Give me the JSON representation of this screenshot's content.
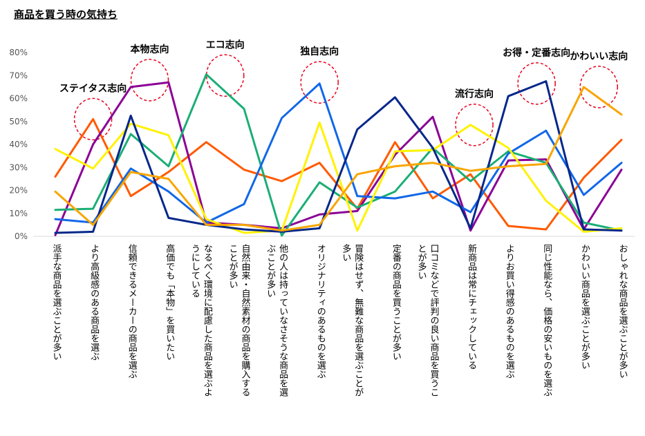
{
  "chart_data": {
    "type": "line",
    "title": "商品を買う時の気持ち",
    "ylim": [
      0,
      80
    ],
    "yticks": [
      "0%",
      "10%",
      "20%",
      "30%",
      "40%",
      "50%",
      "60%",
      "70%",
      "80%"
    ],
    "categories": [
      "派手な商品を選ぶことが多い",
      "より高級感のある商品を選ぶ",
      "信頼できるメーカーの商品を選ぶ",
      "高価でも「本物」を買いたい",
      "なるべく環境に配慮した商品を選ぶようにしている",
      "自然由来・自然素材の商品を購入することが多い",
      "他の人は持っていなさそうな商品を選ぶことが多い",
      "オリジナリティのあるものを選ぶ",
      "冒険はせず、無難な商品を選ぶことが多い",
      "定番の商品を買うことが多い",
      "口コミなどで評判の良い商品を買うことが多い",
      "新商品は常にチェックしている",
      "よりお買い得感のあるものを選ぶ",
      "同じ性能なら、価格の安いものを選ぶ",
      "かわいい商品を選ぶことが多い",
      "おしゃれな商品を選ぶことが多い"
    ],
    "category_lines": [
      [
        "派手な商品を選ぶことが多い"
      ],
      [
        "より高級感のある商品を選ぶ"
      ],
      [
        "信頼できるメーカーの商品を選ぶ"
      ],
      [
        "高価でも「本物」を買いたい"
      ],
      [
        "なるべく環境に配慮した商品を選ぶよ",
        "うにしている"
      ],
      [
        "自然由来・自然素材の商品を購入する",
        "ことが多い"
      ],
      [
        "他の人は持っていなさそうな商品を選",
        "ぶことが多い"
      ],
      [
        "オリジナリティのあるものを選ぶ"
      ],
      [
        "冒険はせず、無難な商品を選ぶことが",
        "多い"
      ],
      [
        "定番の商品を買うことが多い"
      ],
      [
        "口コミなどで評判の良い商品を買うこ",
        "とが多い"
      ],
      [
        "新商品は常にチェックしている"
      ],
      [
        "よりお買い得感のあるものを選ぶ"
      ],
      [
        "同じ性能なら、価格の安いものを選ぶ"
      ],
      [
        "かわいい商品を選ぶことが多い"
      ],
      [
        "おしゃれな商品を選ぶことが多い"
      ]
    ],
    "series": [
      {
        "name": "ステイタス志向",
        "color": "#FF5A00",
        "values": [
          26,
          51,
          17.5,
          28,
          41,
          29,
          24,
          32,
          12,
          41,
          16.5,
          27,
          4.5,
          3,
          25.5,
          42
        ]
      },
      {
        "name": "本物志向",
        "color": "#8B0096",
        "values": [
          0.5,
          40,
          65,
          67,
          6,
          5,
          3.5,
          9.5,
          11,
          35.5,
          52,
          2.5,
          33,
          33.5,
          3,
          29
        ]
      },
      {
        "name": "エコ志向",
        "color": "#1AAE75",
        "values": [
          11.5,
          12,
          44.5,
          30.5,
          70.5,
          55.5,
          0.3,
          23.5,
          12.5,
          19.5,
          38.5,
          24,
          37,
          32,
          6,
          2.5
        ]
      },
      {
        "name": "独自志向",
        "color": "#1167E8",
        "values": [
          7.5,
          6,
          29.5,
          19.5,
          6,
          14,
          51.5,
          66.5,
          17.5,
          16.5,
          19.5,
          10.5,
          36,
          46,
          18,
          32
        ]
      },
      {
        "name": "流行志向",
        "color": "#FFF200",
        "values": [
          38,
          29.5,
          49,
          44,
          7.5,
          1.5,
          2.5,
          49.5,
          2.5,
          37,
          37.5,
          48.5,
          38.5,
          15.5,
          2,
          3.5
        ]
      },
      {
        "name": "お得・定番志向",
        "color": "#06278A",
        "values": [
          1.5,
          2,
          52.5,
          8,
          5,
          3,
          2,
          3.5,
          46.5,
          60.5,
          38.5,
          3.5,
          61,
          67.5,
          3,
          2.5
        ]
      },
      {
        "name": "かわいい志向",
        "color": "#F8A500",
        "values": [
          19.5,
          5,
          28,
          25,
          5,
          5,
          2.5,
          5,
          27,
          30.5,
          32,
          28.5,
          30.5,
          31.5,
          65,
          53
        ]
      }
    ],
    "annotations": [
      {
        "text": "ステイタス志向",
        "category_index": 1,
        "value": 51
      },
      {
        "text": "本物志向",
        "category_index": 2.5,
        "value": 68
      },
      {
        "text": "エコ志向",
        "category_index": 4.5,
        "value": 70
      },
      {
        "text": "独自志向",
        "category_index": 7,
        "value": 67
      },
      {
        "text": "流行志向",
        "category_index": 11.1,
        "value": 48.5
      },
      {
        "text": "お得・定番志向",
        "category_index": 12.75,
        "value": 66.5
      },
      {
        "text": "かわいい志向",
        "category_index": 14.4,
        "value": 65
      }
    ]
  }
}
